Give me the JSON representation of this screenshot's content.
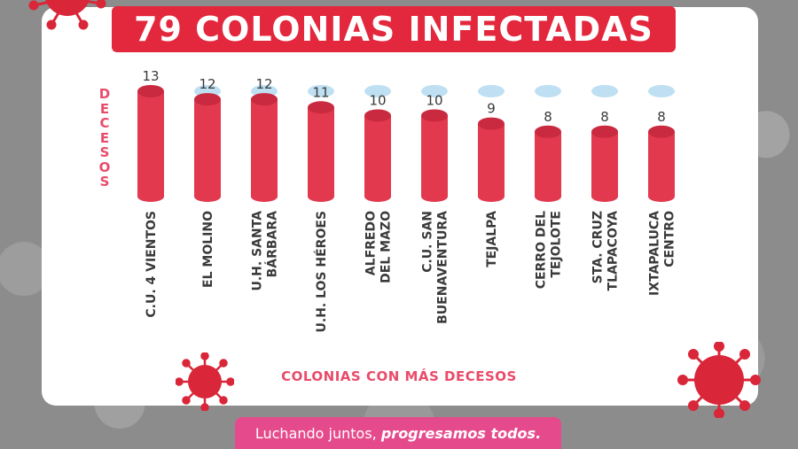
{
  "title": "79 COLONIAS INFECTADAS",
  "slogan": {
    "part1": "Luchando juntos, ",
    "part2": "progresamos todos."
  },
  "colors": {
    "bar": "#e3394f",
    "bar_top": "#c92a40",
    "empty_cap": "#bfe0f2",
    "label": "#e94b6a",
    "text_dark": "#3a3a3a",
    "banner": "#e3273c",
    "slogan_bg": "#e54b8c"
  },
  "chart_data": {
    "type": "bar",
    "ylabel": "DECESOS",
    "xlabel": "COLONIAS CON MÁS DECESOS",
    "ylim": [
      0,
      13
    ],
    "categories": [
      [
        "C.U. 4 VIENTOS"
      ],
      [
        "EL MOLINO"
      ],
      [
        "U.H. SANTA",
        "BÁRBARA"
      ],
      [
        "U.H. LOS HÉROES"
      ],
      [
        "ALFREDO",
        "DEL MAZO"
      ],
      [
        "C.U. SAN",
        "BUENAVENTURA"
      ],
      [
        "TEJALPA"
      ],
      [
        "CERRO DEL",
        "TEJOLOTE"
      ],
      [
        "STA. CRUZ",
        "TLAPACOYA"
      ],
      [
        "IXTAPALUCA",
        "CENTRO"
      ]
    ],
    "values": [
      13,
      12,
      12,
      11,
      10,
      10,
      9,
      8,
      8,
      8
    ]
  }
}
